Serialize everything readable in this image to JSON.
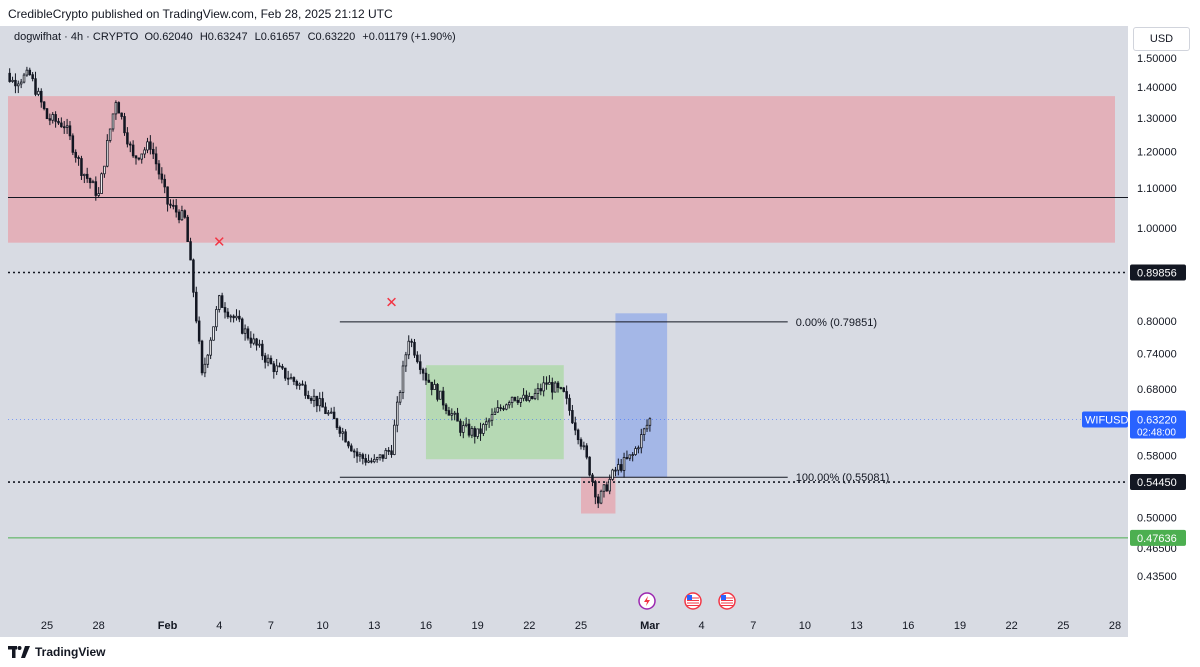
{
  "header": {
    "publisher": "CredibleCrypto published on TradingView.com, Feb 28, 2025 21:12 UTC"
  },
  "symbol_info": {
    "name": "dogwifhat · 4h · CRYPTO",
    "open_label": "O",
    "open": "0.62040",
    "high_label": "H",
    "high": "0.63247",
    "low_label": "L",
    "low": "0.61657",
    "close_label": "C",
    "close": "0.63220",
    "change": "+0.01179 (+1.90%)"
  },
  "currency_button": "USD",
  "footer": {
    "brand": "TradingView"
  },
  "colors": {
    "background": "#d8dbe3",
    "up_candle": "#131722",
    "supply_zone": "#e8a0a8",
    "consolidation_zone": "#a8d8a0",
    "target_zone": "#8fa8e8",
    "stop_zone": "#e8a0a8",
    "green_line": "#4caf50",
    "price_tag_blue": "#2962ff",
    "marker_red": "#f23645"
  },
  "chart_data": {
    "type": "candlestick",
    "symbol": "WIFUSD",
    "timeframe": "4h",
    "y_scale": "log",
    "ylim": [
      0.4,
      1.62
    ],
    "y_ticks": [
      "1.50000",
      "1.40000",
      "1.30000",
      "1.20000",
      "1.10000",
      "1.00000",
      "0.80000",
      "0.74000",
      "0.68000",
      "0.58000",
      "0.50000",
      "0.46500",
      "0.43500"
    ],
    "y_tick_values": [
      1.5,
      1.4,
      1.3,
      1.2,
      1.1,
      1.0,
      0.8,
      0.74,
      0.68,
      0.58,
      0.5,
      0.465,
      0.435
    ],
    "x_ticks": [
      "25",
      "28",
      "Feb",
      "4",
      "7",
      "10",
      "13",
      "16",
      "19",
      "22",
      "25",
      "Mar",
      "4",
      "7",
      "10",
      "13",
      "16",
      "19",
      "22",
      "25",
      "28"
    ],
    "x_tick_dates": [
      "2025-01-25",
      "2025-01-28",
      "2025-02-01",
      "2025-02-04",
      "2025-02-07",
      "2025-02-10",
      "2025-02-13",
      "2025-02-16",
      "2025-02-19",
      "2025-02-22",
      "2025-02-25",
      "2025-03-01",
      "2025-03-04",
      "2025-03-07",
      "2025-03-10",
      "2025-03-13",
      "2025-03-16",
      "2025-03-19",
      "2025-03-22",
      "2025-03-25",
      "2025-03-28"
    ],
    "price_path": [
      [
        "2025-01-22",
        1.48
      ],
      [
        "2025-01-23",
        1.42
      ],
      [
        "2025-01-24",
        1.44
      ],
      [
        "2025-01-25",
        1.3
      ],
      [
        "2025-01-26",
        1.28
      ],
      [
        "2025-01-27",
        1.15
      ],
      [
        "2025-01-28",
        1.08
      ],
      [
        "2025-01-29",
        1.36
      ],
      [
        "2025-01-30",
        1.18
      ],
      [
        "2025-01-31",
        1.22
      ],
      [
        "2025-02-01",
        1.06
      ],
      [
        "2025-02-02",
        1.02
      ],
      [
        "2025-02-03",
        0.7
      ],
      [
        "2025-02-04",
        0.84
      ],
      [
        "2025-02-05",
        0.8
      ],
      [
        "2025-02-06",
        0.76
      ],
      [
        "2025-02-07",
        0.72
      ],
      [
        "2025-02-08",
        0.7
      ],
      [
        "2025-02-09",
        0.68
      ],
      [
        "2025-02-10",
        0.65
      ],
      [
        "2025-02-11",
        0.62
      ],
      [
        "2025-02-12",
        0.58
      ],
      [
        "2025-02-13",
        0.57
      ],
      [
        "2025-02-14",
        0.59
      ],
      [
        "2025-02-15",
        0.77
      ],
      [
        "2025-02-16",
        0.7
      ],
      [
        "2025-02-17",
        0.66
      ],
      [
        "2025-02-18",
        0.62
      ],
      [
        "2025-02-19",
        0.61
      ],
      [
        "2025-02-20",
        0.64
      ],
      [
        "2025-02-21",
        0.67
      ],
      [
        "2025-02-22",
        0.66
      ],
      [
        "2025-02-23",
        0.69
      ],
      [
        "2025-02-24",
        0.67
      ],
      [
        "2025-02-25",
        0.6
      ],
      [
        "2025-02-26",
        0.52
      ],
      [
        "2025-02-27",
        0.56
      ],
      [
        "2025-02-28",
        0.58
      ],
      [
        "2025-03-01",
        0.6322
      ]
    ],
    "horizontal_levels": [
      {
        "price": 1.075,
        "style": "solid",
        "color": "#131722"
      },
      {
        "price": 0.89856,
        "style": "dotted",
        "color": "#131722",
        "label": "0.89856"
      },
      {
        "price": 0.5445,
        "style": "dotted",
        "color": "#131722",
        "label": "0.54450"
      },
      {
        "price": 0.47636,
        "style": "solid",
        "color": "#4caf50",
        "label": "0.47636"
      }
    ],
    "zones": [
      {
        "name": "supply",
        "from_date": "2025-01-29",
        "to_date": "2025-03-28",
        "top": 1.37,
        "bottom": 0.965,
        "color": "#e8a0a8"
      },
      {
        "name": "consolidation",
        "from_date": "2025-02-16",
        "to_date": "2025-02-24",
        "top": 0.72,
        "bottom": 0.575,
        "color": "#a8d8a0"
      },
      {
        "name": "target",
        "from_date": "2025-02-27",
        "to_date": "2025-03-02",
        "top": 0.815,
        "bottom": 0.5505,
        "color": "#8fa8e8"
      },
      {
        "name": "stop",
        "from_date": "2025-02-25",
        "to_date": "2025-02-27",
        "top": 0.5505,
        "bottom": 0.505,
        "color": "#e8a0a8"
      }
    ],
    "fib": {
      "from_date": "2025-02-11",
      "to_date": "2025-03-09",
      "levels": [
        {
          "label": "0.00% (0.79851)",
          "price": 0.79851
        },
        {
          "label": "100.00% (0.55081)",
          "price": 0.55081
        }
      ]
    },
    "markers": [
      {
        "date": "2025-02-04",
        "price": 0.955,
        "symbol": "✕"
      },
      {
        "date": "2025-02-14",
        "price": 0.826,
        "symbol": "✕"
      }
    ],
    "last_price": {
      "label": "WIFUSD",
      "value": "0.63220",
      "countdown": "02:48:00",
      "price": 0.6322
    },
    "event_icons": [
      "lightning-icon",
      "us-flag-icon",
      "us-flag-icon"
    ]
  }
}
